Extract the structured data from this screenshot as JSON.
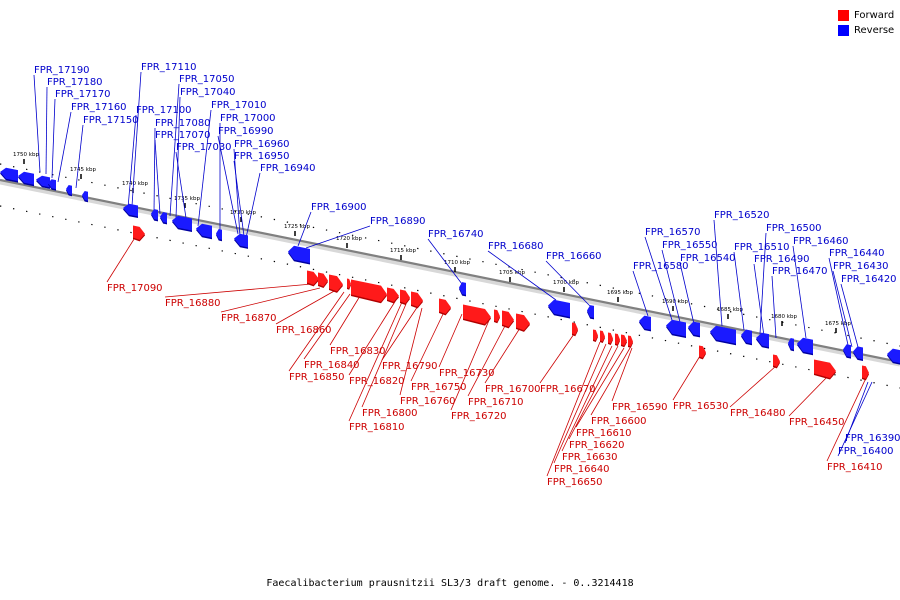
{
  "legend": {
    "forward_label": "Forward",
    "reverse_label": "Reverse",
    "forward_color": "#ff0000",
    "reverse_color": "#0000ff"
  },
  "footer": {
    "caption": "Faecalibacterium prausnitzii SL3/3 draft genome. - 0..3214418"
  },
  "ticks": [
    "1750 kbp",
    "1745 kbp",
    "1740 kbp",
    "1735 kbp",
    "1730 kbp",
    "1725 kbp",
    "1720 kbp",
    "1715 kbp",
    "1710 kbp",
    "1705 kbp",
    "1700 kbp",
    "1695 kbp",
    "1690 kbp",
    "1685 kbp",
    "1680 kbp",
    "1675 kbp"
  ],
  "reverse_genes": [
    "FPR_17190",
    "FPR_17180",
    "FPR_17170",
    "FPR_17160",
    "FPR_17150",
    "FPR_17110",
    "FPR_17100",
    "FPR_17080",
    "FPR_17070",
    "FPR_17050",
    "FPR_17040",
    "FPR_17030",
    "FPR_17010",
    "FPR_17000",
    "FPR_16990",
    "FPR_16960",
    "FPR_16950",
    "FPR_16940",
    "FPR_16900",
    "FPR_16890",
    "FPR_16740",
    "FPR_16680",
    "FPR_16660",
    "FPR_16580",
    "FPR_16570",
    "FPR_16550",
    "FPR_16540",
    "FPR_16520",
    "FPR_16510",
    "FPR_16500",
    "FPR_16490",
    "FPR_16470",
    "FPR_16460",
    "FPR_16440",
    "FPR_16430",
    "FPR_16420",
    "FPR_16390",
    "FPR_16400"
  ],
  "forward_genes": [
    "FPR_17090",
    "FPR_16880",
    "FPR_16870",
    "FPR_16860",
    "FPR_16850",
    "FPR_16840",
    "FPR_16830",
    "FPR_16820",
    "FPR_16810",
    "FPR_16800",
    "FPR_16790",
    "FPR_16760",
    "FPR_16750",
    "FPR_16730",
    "FPR_16720",
    "FPR_16710",
    "FPR_16700",
    "FPR_16670",
    "FPR_16650",
    "FPR_16640",
    "FPR_16630",
    "FPR_16620",
    "FPR_16610",
    "FPR_16600",
    "FPR_16590",
    "FPR_16530",
    "FPR_16480",
    "FPR_16450",
    "FPR_16410"
  ]
}
